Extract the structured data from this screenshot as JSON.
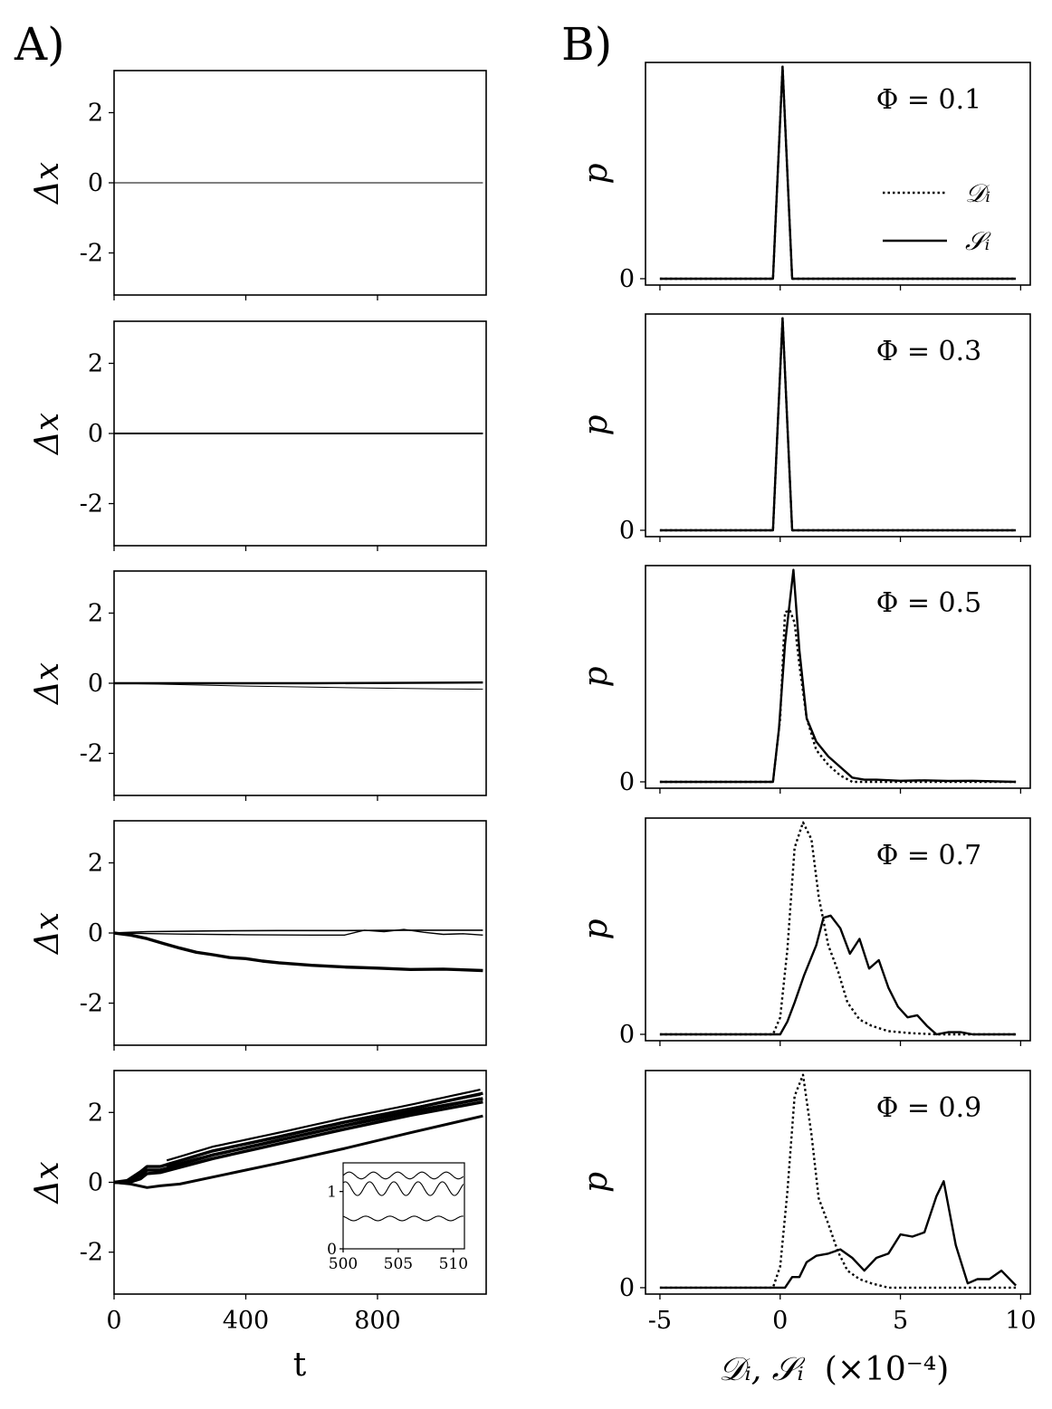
{
  "panel_labels": {
    "left": "A)",
    "right": "B)"
  },
  "left_axes": {
    "ylabel": "Δx",
    "xlabel": "t",
    "yticks": [
      2,
      0,
      -2
    ],
    "ytick_labels": [
      "2",
      "0",
      "-2"
    ],
    "xticks": [
      0,
      400,
      800
    ],
    "xtick_labels": [
      "0",
      "400",
      "800"
    ]
  },
  "right_axes": {
    "ylabel": "p",
    "ytick_label": "0",
    "xlabel_main": "𝒟ᵢ, 𝒮ᵢ",
    "xlabel_unit": "(×10⁻⁴)",
    "xticks": [
      -5,
      0,
      5,
      10
    ],
    "xtick_labels": [
      "-5",
      "0",
      "5",
      "10"
    ]
  },
  "legend": {
    "entries": [
      {
        "label": "𝒟ᵢ",
        "style": "dotted"
      },
      {
        "label": "𝒮ᵢ",
        "style": "solid"
      }
    ]
  },
  "inset": {
    "xtick_labels": [
      "500",
      "505",
      "510"
    ],
    "ytick_labels": [
      "0",
      "1"
    ]
  },
  "phi_labels": [
    "Φ = 0.1",
    "Φ = 0.3",
    "Φ = 0.5",
    "Φ = 0.7",
    "Φ = 0.9"
  ],
  "chart_data": [
    {
      "type": "line",
      "panel": "A, Φ = 0.1",
      "xlabel": "t",
      "ylabel": "Δx",
      "xlim": [
        0,
        1130
      ],
      "ylim": [
        -3.2,
        3.2
      ],
      "series": [
        {
          "x": [
            0,
            1120
          ],
          "y": [
            0,
            0
          ],
          "width": 1
        }
      ]
    },
    {
      "type": "line",
      "panel": "A, Φ = 0.3",
      "xlabel": "t",
      "ylabel": "Δx",
      "xlim": [
        0,
        1130
      ],
      "ylim": [
        -3.2,
        3.2
      ],
      "series": [
        {
          "x": [
            0,
            1120
          ],
          "y": [
            0,
            0
          ],
          "width": 2
        },
        {
          "x": [
            0,
            1120
          ],
          "y": [
            0,
            0.01
          ],
          "width": 1
        }
      ]
    },
    {
      "type": "line",
      "panel": "A, Φ = 0.5",
      "xlabel": "t",
      "ylabel": "Δx",
      "xlim": [
        0,
        1130
      ],
      "ylim": [
        -3.2,
        3.2
      ],
      "series": [
        {
          "x": [
            0,
            300,
            600,
            900,
            1120
          ],
          "y": [
            0,
            0.0,
            0.0,
            0.01,
            0.02
          ],
          "width": 2.4
        },
        {
          "x": [
            0,
            200,
            400,
            600,
            800,
            1000,
            1120
          ],
          "y": [
            0,
            -0.04,
            -0.08,
            -0.11,
            -0.14,
            -0.16,
            -0.17
          ],
          "width": 1
        }
      ]
    },
    {
      "type": "line",
      "panel": "A, Φ = 0.7",
      "xlabel": "t",
      "ylabel": "Δx",
      "xlim": [
        0,
        1130
      ],
      "ylim": [
        -3.2,
        3.2
      ],
      "series": [
        {
          "x": [
            0,
            100,
            300,
            500,
            700,
            900,
            1120
          ],
          "y": [
            0,
            0.04,
            0.06,
            0.07,
            0.07,
            0.08,
            0.08
          ],
          "width": 1.6
        },
        {
          "x": [
            0,
            200,
            400,
            600,
            700,
            760,
            820,
            880,
            940,
            1000,
            1060,
            1120
          ],
          "y": [
            0,
            -0.03,
            -0.05,
            -0.06,
            -0.06,
            0.08,
            0.04,
            0.1,
            0.02,
            -0.04,
            -0.02,
            -0.06
          ],
          "width": 1.4
        },
        {
          "x": [
            0,
            50,
            100,
            150,
            200,
            250,
            300,
            350,
            400,
            450,
            500,
            600,
            700,
            800,
            900,
            1000,
            1120
          ],
          "y": [
            0,
            -0.06,
            -0.16,
            -0.3,
            -0.43,
            -0.55,
            -0.62,
            -0.7,
            -0.73,
            -0.8,
            -0.85,
            -0.92,
            -0.97,
            -1.0,
            -1.04,
            -1.03,
            -1.07
          ],
          "width": 3.4
        }
      ]
    },
    {
      "type": "line",
      "panel": "A, Φ = 0.9",
      "xlabel": "t",
      "ylabel": "Δx",
      "xlim": [
        0,
        1130
      ],
      "ylim": [
        -3.2,
        3.2
      ],
      "series": [
        {
          "x": [
            0,
            40,
            80,
            100,
            140,
            300,
            500,
            700,
            900,
            1120
          ],
          "y": [
            0,
            0.05,
            0.3,
            0.45,
            0.45,
            0.9,
            1.3,
            1.72,
            2.1,
            2.55
          ],
          "width": 3.4
        },
        {
          "x": [
            0,
            40,
            80,
            100,
            140,
            300,
            500,
            700,
            900,
            1120
          ],
          "y": [
            0,
            0.02,
            0.2,
            0.35,
            0.35,
            0.78,
            1.2,
            1.62,
            2.0,
            2.4
          ],
          "width": 3.4
        },
        {
          "x": [
            0,
            40,
            80,
            100,
            140,
            300,
            500,
            700,
            900,
            1120
          ],
          "y": [
            0,
            -0.02,
            0.1,
            0.25,
            0.28,
            0.68,
            1.1,
            1.52,
            1.92,
            2.3
          ],
          "width": 3.4
        },
        {
          "x": [
            0,
            50,
            100,
            140,
            200,
            300,
            500,
            700,
            900,
            1120
          ],
          "y": [
            0,
            -0.05,
            -0.15,
            -0.1,
            -0.05,
            0.15,
            0.55,
            0.97,
            1.42,
            1.9
          ],
          "width": 3
        }
      ]
    },
    {
      "type": "line",
      "panel": "A inset (Φ = 0.9)",
      "xlim": [
        500,
        511
      ],
      "ylim": [
        0,
        1.5
      ],
      "series": [
        {
          "name": "top",
          "amp": 0.06,
          "offset": 1.28,
          "period": 2.2
        },
        {
          "name": "middle",
          "amp": 0.12,
          "offset": 1.05,
          "period": 2.2
        },
        {
          "name": "bottom",
          "amp": 0.04,
          "offset": 0.53,
          "period": 2.2
        }
      ]
    },
    {
      "type": "line",
      "panel": "B, Φ = 0.1",
      "xlabel": "𝒟ᵢ, 𝒮ᵢ (×10⁻⁴)",
      "ylabel": "p",
      "xlim": [
        -5.6,
        10.4
      ],
      "ylim": [
        -0.03,
        1.02
      ],
      "series": [
        {
          "name": "𝒟ᵢ",
          "style": "dotted",
          "x": [
            -5,
            -0.3,
            0.1,
            0.5,
            9.8
          ],
          "y": [
            0,
            0,
            1,
            0,
            0
          ]
        },
        {
          "name": "𝒮ᵢ",
          "style": "solid",
          "x": [
            -5,
            -0.3,
            0.1,
            0.5,
            9.8
          ],
          "y": [
            0,
            0,
            1,
            0,
            0
          ]
        }
      ]
    },
    {
      "type": "line",
      "panel": "B, Φ = 0.3",
      "xlabel": "𝒟ᵢ, 𝒮ᵢ (×10⁻⁴)",
      "ylabel": "p",
      "xlim": [
        -5.6,
        10.4
      ],
      "ylim": [
        -0.03,
        1.02
      ],
      "series": [
        {
          "name": "𝒟ᵢ",
          "style": "dotted",
          "x": [
            -5,
            -0.3,
            0.1,
            0.5,
            9.8
          ],
          "y": [
            0,
            0,
            1,
            0,
            0
          ]
        },
        {
          "name": "𝒮ᵢ",
          "style": "solid",
          "x": [
            -5,
            -0.3,
            0.1,
            0.5,
            9.8
          ],
          "y": [
            0,
            0,
            1,
            0,
            0
          ]
        }
      ]
    },
    {
      "type": "line",
      "panel": "B, Φ = 0.5",
      "xlabel": "𝒟ᵢ, 𝒮ᵢ (×10⁻⁴)",
      "ylabel": "p",
      "xlim": [
        -5.6,
        10.4
      ],
      "ylim": [
        -0.03,
        1.02
      ],
      "series": [
        {
          "name": "𝒟ᵢ",
          "style": "dotted",
          "x": [
            -5,
            -0.3,
            0.0,
            0.2,
            0.4,
            0.6,
            0.8,
            1.1,
            1.5,
            2.0,
            2.5,
            3.0,
            9.8
          ],
          "y": [
            0,
            0,
            0.3,
            0.8,
            0.81,
            0.75,
            0.55,
            0.3,
            0.15,
            0.08,
            0.03,
            0.0,
            0
          ]
        },
        {
          "name": "𝒮ᵢ",
          "style": "solid",
          "x": [
            -5,
            -0.3,
            -0.05,
            0.2,
            0.55,
            0.8,
            1.1,
            1.5,
            2.0,
            2.5,
            3.0,
            3.5,
            4.0,
            5.0,
            6.0,
            7.0,
            8.0,
            9.8
          ],
          "y": [
            0,
            0,
            0.25,
            0.65,
            1.0,
            0.62,
            0.3,
            0.19,
            0.12,
            0.07,
            0.02,
            0.01,
            0.01,
            0.005,
            0.007,
            0.004,
            0.005,
            0
          ]
        }
      ]
    },
    {
      "type": "line",
      "panel": "B, Φ = 0.7",
      "xlabel": "𝒟ᵢ, 𝒮ᵢ (×10⁻⁴)",
      "ylabel": "p",
      "xlim": [
        -5.6,
        10.4
      ],
      "ylim": [
        -0.03,
        1.02
      ],
      "series": [
        {
          "name": "𝒟ᵢ",
          "style": "dotted",
          "x": [
            -5,
            -0.3,
            0.0,
            0.3,
            0.6,
            0.95,
            1.3,
            1.6,
            2.0,
            2.4,
            2.8,
            3.3,
            3.8,
            4.5,
            5.5,
            6.5,
            9.8
          ],
          "y": [
            0,
            0,
            0.08,
            0.4,
            0.88,
            1.0,
            0.92,
            0.65,
            0.42,
            0.3,
            0.15,
            0.07,
            0.04,
            0.015,
            0.005,
            0,
            0
          ]
        },
        {
          "name": "𝒮ᵢ",
          "style": "solid",
          "x": [
            -5,
            0.0,
            0.3,
            0.6,
            1.0,
            1.5,
            1.8,
            2.1,
            2.5,
            2.9,
            3.3,
            3.7,
            4.1,
            4.5,
            4.9,
            5.3,
            5.7,
            6.1,
            6.5,
            7.0,
            7.5,
            8.0,
            9.8
          ],
          "y": [
            0,
            0,
            0.06,
            0.15,
            0.28,
            0.42,
            0.55,
            0.56,
            0.5,
            0.38,
            0.45,
            0.31,
            0.35,
            0.22,
            0.13,
            0.08,
            0.09,
            0.04,
            0.0,
            0.01,
            0.01,
            0.0,
            0
          ]
        }
      ]
    },
    {
      "type": "line",
      "panel": "B, Φ = 0.9",
      "xlabel": "𝒟ᵢ, 𝒮ᵢ (×10⁻⁴)",
      "ylabel": "p",
      "xlim": [
        -5.6,
        10.4
      ],
      "ylim": [
        -0.03,
        1.02
      ],
      "series": [
        {
          "name": "𝒟ᵢ",
          "style": "dotted",
          "x": [
            -5,
            -0.3,
            0.0,
            0.3,
            0.6,
            0.95,
            1.3,
            1.6,
            2.0,
            2.4,
            2.8,
            3.3,
            3.8,
            4.5,
            5.5,
            9.8
          ],
          "y": [
            0,
            0,
            0.1,
            0.45,
            0.9,
            1.0,
            0.72,
            0.42,
            0.3,
            0.17,
            0.08,
            0.04,
            0.02,
            0.0,
            0,
            0
          ]
        },
        {
          "name": "𝒮ᵢ",
          "style": "solid",
          "x": [
            -5,
            0.2,
            0.5,
            0.8,
            1.1,
            1.5,
            2.0,
            2.5,
            3.0,
            3.5,
            4.0,
            4.5,
            5.0,
            5.5,
            6.0,
            6.5,
            6.8,
            7.3,
            7.8,
            8.2,
            8.7,
            9.2,
            9.8
          ],
          "y": [
            0,
            0,
            0.05,
            0.05,
            0.12,
            0.15,
            0.16,
            0.18,
            0.14,
            0.08,
            0.14,
            0.16,
            0.25,
            0.24,
            0.26,
            0.43,
            0.5,
            0.2,
            0.02,
            0.04,
            0.04,
            0.08,
            0.01
          ]
        }
      ]
    }
  ]
}
